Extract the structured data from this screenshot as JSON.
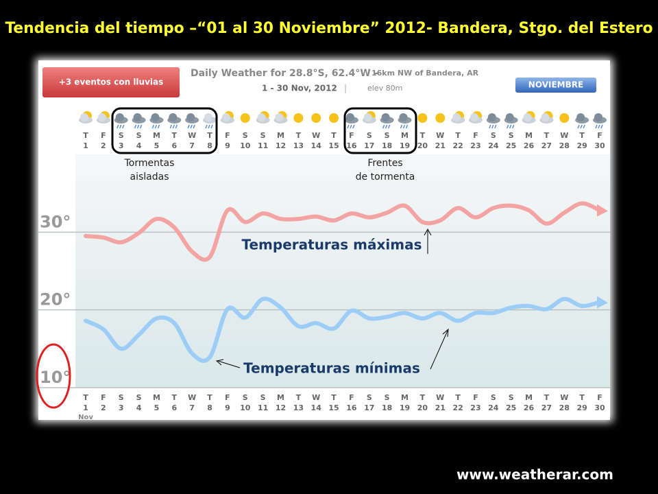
{
  "chart_data": {
    "type": "line",
    "title": "Tendencia del tiempo –“01 al 30 Noviembre” 2012- Bandera, Stgo. del Estero",
    "badge": "+3 eventos con lluvias",
    "subtitle": "Daily Weather for 28.8°S, 62.4°W -",
    "location": "16km NW of Bandera, AR",
    "date_range": "1 - 30 Nov, 2012",
    "separator": "|",
    "elevation": "elev 80m",
    "month_badge": "NOVIEMBRE",
    "annotations": [
      [
        "Tormentas",
        "aisladas"
      ],
      [
        "Frentes",
        "de tormenta"
      ]
    ],
    "x_unit": "Nov",
    "footer": "www.weatherar.com",
    "weekdays": [
      "T",
      "F",
      "S",
      "S",
      "M",
      "T",
      "W",
      "T",
      "F",
      "S",
      "S",
      "M",
      "T",
      "W",
      "T",
      "F",
      "S",
      "S",
      "M",
      "T",
      "W",
      "T",
      "F",
      "S",
      "S",
      "M",
      "T",
      "W",
      "T",
      "F"
    ],
    "categories": [
      "1",
      "2",
      "3",
      "4",
      "5",
      "6",
      "7",
      "8",
      "9",
      "10",
      "11",
      "12",
      "13",
      "14",
      "15",
      "16",
      "17",
      "18",
      "19",
      "20",
      "21",
      "22",
      "23",
      "24",
      "25",
      "26",
      "27",
      "28",
      "29",
      "30"
    ],
    "series": [
      {
        "name": "Temperaturas máximas",
        "color": "#f4a3a3",
        "values": [
          29.5,
          29.3,
          28.7,
          29.9,
          31.7,
          30.6,
          27.5,
          26.8,
          32.8,
          31.3,
          32.4,
          31.7,
          31.7,
          32,
          31.5,
          32.4,
          31.9,
          32.5,
          33.4,
          31.3,
          31.5,
          33.1,
          31.9,
          33.1,
          33.4,
          32.8,
          31.1,
          32.5,
          33.7,
          32.8
        ]
      },
      {
        "name": "Temperaturas mínimas",
        "color": "#9dccf6",
        "values": [
          18.6,
          17.5,
          15,
          16.8,
          18.9,
          18.3,
          14.4,
          13.9,
          20.1,
          19,
          21.4,
          20.3,
          17.9,
          18.3,
          17.6,
          19.9,
          18.9,
          19.1,
          19.6,
          18.9,
          19.6,
          18.6,
          19.6,
          19.6,
          20.3,
          20.5,
          20.1,
          21.4,
          20.5,
          21
        ]
      }
    ],
    "ylim": [
      10,
      40
    ],
    "yticks": [
      {
        "value": 10,
        "label": "10°"
      },
      {
        "value": 20,
        "label": "20°"
      },
      {
        "value": 30,
        "label": "30°"
      }
    ],
    "grid": true
  }
}
